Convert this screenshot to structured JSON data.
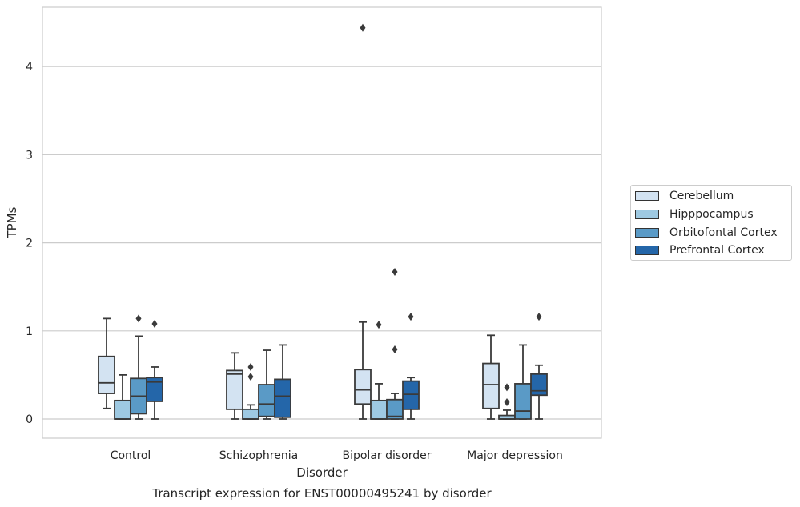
{
  "chart_data": {
    "type": "box",
    "title": "Transcript expression for ENST00000495241 by disorder",
    "xlabel": "Disorder",
    "ylabel": "TPMs",
    "ylim": [
      -0.22,
      4.7
    ],
    "yticks": [
      0,
      1,
      2,
      3,
      4
    ],
    "grid": "horizontal",
    "legend_position": "right",
    "categories": [
      "Control",
      "Schizophrenia",
      "Bipolar disorder",
      "Major depression"
    ],
    "series": [
      {
        "name": "Cerebellum",
        "color": "#d3e3f2",
        "boxes": [
          {
            "q1": 0.29,
            "median": 0.41,
            "q3": 0.71,
            "whisker_low": 0.12,
            "whisker_high": 1.14,
            "outliers": []
          },
          {
            "q1": 0.11,
            "median": 0.51,
            "q3": 0.55,
            "whisker_low": 0.0,
            "whisker_high": 0.75,
            "outliers": []
          },
          {
            "q1": 0.17,
            "median": 0.33,
            "q3": 0.56,
            "whisker_low": 0.0,
            "whisker_high": 1.1,
            "outliers": [
              4.44
            ]
          },
          {
            "q1": 0.12,
            "median": 0.39,
            "q3": 0.63,
            "whisker_low": 0.0,
            "whisker_high": 0.95,
            "outliers": []
          }
        ]
      },
      {
        "name": "Hipppocampus",
        "color": "#9ec9e2",
        "boxes": [
          {
            "q1": 0.0,
            "median": 0.0,
            "q3": 0.21,
            "whisker_low": 0.0,
            "whisker_high": 0.5,
            "outliers": []
          },
          {
            "q1": 0.0,
            "median": 0.0,
            "q3": 0.11,
            "whisker_low": 0.0,
            "whisker_high": 0.16,
            "outliers": [
              0.48,
              0.59
            ]
          },
          {
            "q1": 0.0,
            "median": 0.0,
            "q3": 0.21,
            "whisker_low": 0.0,
            "whisker_high": 0.4,
            "outliers": [
              1.07
            ]
          },
          {
            "q1": 0.0,
            "median": 0.0,
            "q3": 0.04,
            "whisker_low": 0.0,
            "whisker_high": 0.1,
            "outliers": [
              0.19,
              0.36
            ]
          }
        ]
      },
      {
        "name": "Orbitofontal Cortex",
        "color": "#5a9ac6",
        "boxes": [
          {
            "q1": 0.06,
            "median": 0.26,
            "q3": 0.46,
            "whisker_low": 0.0,
            "whisker_high": 0.94,
            "outliers": [
              1.14
            ]
          },
          {
            "q1": 0.03,
            "median": 0.17,
            "q3": 0.39,
            "whisker_low": 0.0,
            "whisker_high": 0.78,
            "outliers": []
          },
          {
            "q1": 0.0,
            "median": 0.03,
            "q3": 0.22,
            "whisker_low": 0.0,
            "whisker_high": 0.29,
            "outliers": [
              0.79,
              1.67
            ]
          },
          {
            "q1": 0.0,
            "median": 0.09,
            "q3": 0.4,
            "whisker_low": 0.0,
            "whisker_high": 0.84,
            "outliers": []
          }
        ]
      },
      {
        "name": "Prefrontal Cortex",
        "color": "#2466a9",
        "boxes": [
          {
            "q1": 0.2,
            "median": 0.42,
            "q3": 0.47,
            "whisker_low": 0.0,
            "whisker_high": 0.59,
            "outliers": [
              1.08
            ]
          },
          {
            "q1": 0.02,
            "median": 0.26,
            "q3": 0.45,
            "whisker_low": 0.0,
            "whisker_high": 0.84,
            "outliers": []
          },
          {
            "q1": 0.11,
            "median": 0.28,
            "q3": 0.43,
            "whisker_low": 0.0,
            "whisker_high": 0.47,
            "outliers": [
              1.16
            ]
          },
          {
            "q1": 0.27,
            "median": 0.32,
            "q3": 0.51,
            "whisker_low": 0.0,
            "whisker_high": 0.61,
            "outliers": [
              1.16
            ]
          }
        ]
      }
    ]
  }
}
